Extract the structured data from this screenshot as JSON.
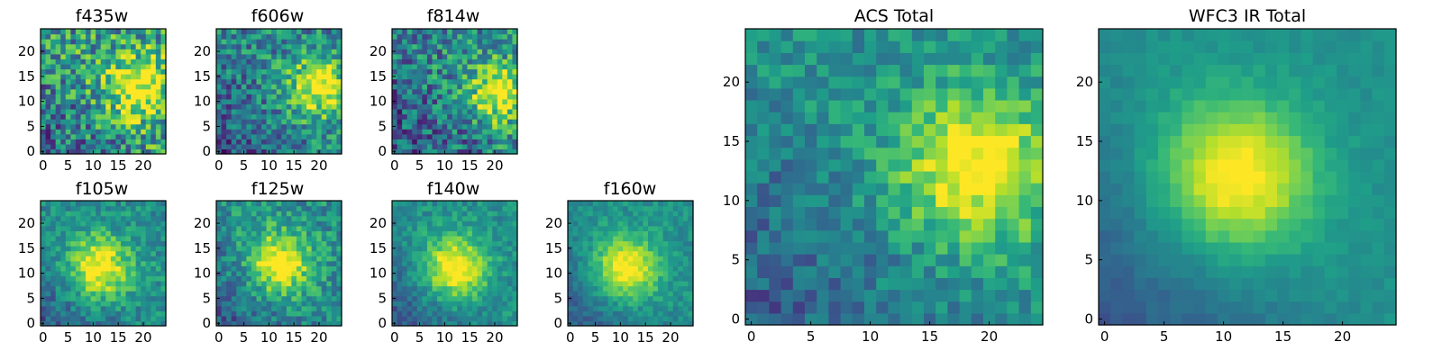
{
  "chart_data": [
    {
      "type": "heatmap",
      "title": "f435w",
      "xticks": [
        0,
        5,
        10,
        15,
        20
      ],
      "yticks": [
        0,
        5,
        10,
        15,
        20
      ],
      "grid_size": [
        25,
        25
      ],
      "colormap": "viridis",
      "blob": {
        "x": 19,
        "y": 13
      },
      "background_level": 0.55,
      "noise": 0.32
    },
    {
      "type": "heatmap",
      "title": "f606w",
      "xticks": [
        0,
        5,
        10,
        15,
        20
      ],
      "yticks": [
        0,
        5,
        10,
        15,
        20
      ],
      "grid_size": [
        25,
        25
      ],
      "colormap": "viridis",
      "blob": {
        "x": 20,
        "y": 13
      },
      "background_level": 0.45,
      "noise": 0.25
    },
    {
      "type": "heatmap",
      "title": "f814w",
      "xticks": [
        0,
        5,
        10,
        15,
        20
      ],
      "yticks": [
        0,
        5,
        10,
        15,
        20
      ],
      "grid_size": [
        25,
        25
      ],
      "colormap": "viridis",
      "blob": {
        "x": 21,
        "y": 12
      },
      "background_level": 0.45,
      "noise": 0.28
    },
    {
      "type": "heatmap",
      "title": "f105w",
      "xticks": [
        0,
        5,
        10,
        15,
        20
      ],
      "yticks": [
        0,
        5,
        10,
        15,
        20
      ],
      "grid_size": [
        25,
        25
      ],
      "colormap": "viridis",
      "blob": {
        "x": 11,
        "y": 11
      },
      "background_level": 0.5,
      "noise": 0.15
    },
    {
      "type": "heatmap",
      "title": "f125w",
      "xticks": [
        0,
        5,
        10,
        15,
        20
      ],
      "yticks": [
        0,
        5,
        10,
        15,
        20
      ],
      "grid_size": [
        25,
        25
      ],
      "colormap": "viridis",
      "blob": {
        "x": 12,
        "y": 12
      },
      "background_level": 0.5,
      "noise": 0.18
    },
    {
      "type": "heatmap",
      "title": "f140w",
      "xticks": [
        0,
        5,
        10,
        15,
        20
      ],
      "yticks": [
        0,
        5,
        10,
        15,
        20
      ],
      "grid_size": [
        25,
        25
      ],
      "colormap": "viridis",
      "blob": {
        "x": 12,
        "y": 11
      },
      "background_level": 0.5,
      "noise": 0.12
    },
    {
      "type": "heatmap",
      "title": "f160w",
      "xticks": [
        0,
        5,
        10,
        15,
        20
      ],
      "yticks": [
        0,
        5,
        10,
        15,
        20
      ],
      "grid_size": [
        25,
        25
      ],
      "colormap": "viridis",
      "blob": {
        "x": 11,
        "y": 11
      },
      "background_level": 0.5,
      "noise": 0.1
    },
    {
      "type": "heatmap",
      "title": "ACS Total",
      "xticks": [
        0,
        5,
        10,
        15,
        20
      ],
      "yticks": [
        0,
        5,
        10,
        15,
        20
      ],
      "grid_size": [
        25,
        25
      ],
      "colormap": "viridis",
      "blob": {
        "x": 19,
        "y": 13
      },
      "background_level": 0.5,
      "noise": 0.15
    },
    {
      "type": "heatmap",
      "title": "WFC3 IR Total",
      "xticks": [
        0,
        5,
        10,
        15,
        20
      ],
      "yticks": [
        0,
        5,
        10,
        15,
        20
      ],
      "grid_size": [
        25,
        25
      ],
      "colormap": "viridis",
      "blob": {
        "x": 11,
        "y": 12
      },
      "background_level": 0.5,
      "noise": 0.04
    }
  ]
}
